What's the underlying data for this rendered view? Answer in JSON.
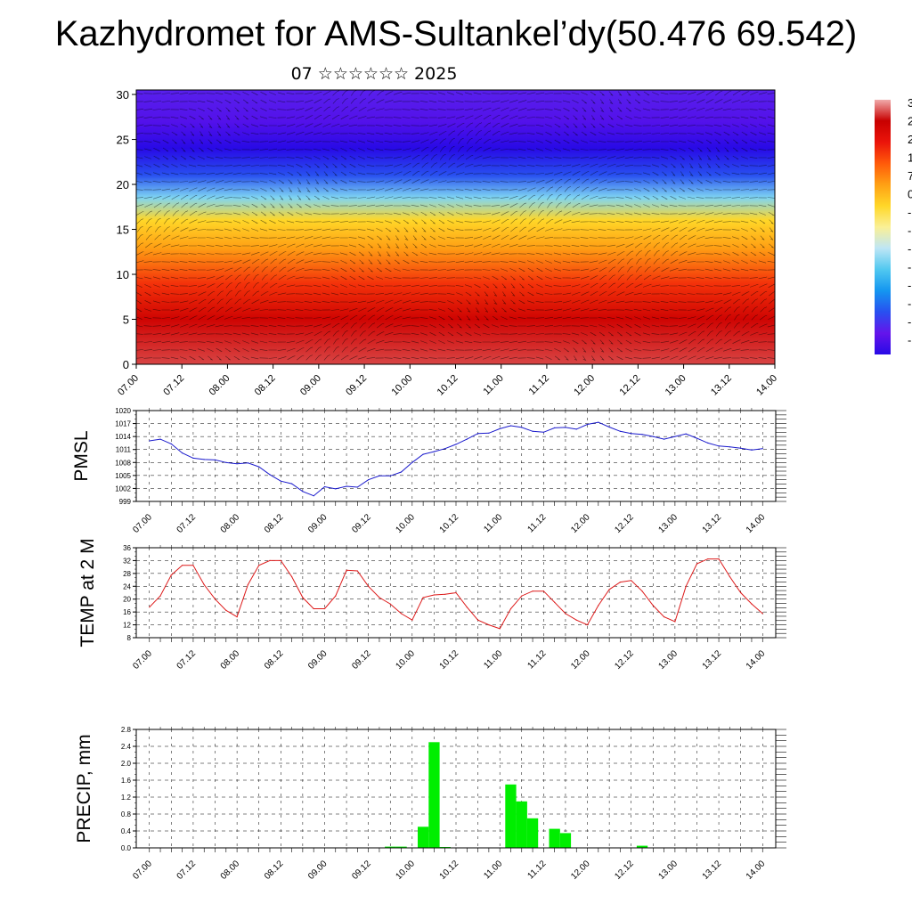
{
  "title": "Kazhydromet for AMS-Sultankel’dy(50.476 69.542)",
  "subtitle": "07 ☆☆☆☆☆☆ 2025",
  "time_labels": [
    "07.00",
    "07.12",
    "08.00",
    "08.12",
    "09.00",
    "09.12",
    "10.00",
    "10.12",
    "11.00",
    "11.12",
    "12.00",
    "12.12",
    "13.00",
    "13.12",
    "14.00"
  ],
  "colors": {
    "pressure_line": "#1a1acc",
    "temp_line": "#dd1a1a",
    "precip_bar": "#00ee00",
    "grid": "#000000"
  },
  "chart_data": [
    {
      "type": "heatmap",
      "id": "cross-section",
      "yticks": [
        "0",
        "5",
        "10",
        "15",
        "20",
        "25",
        "30"
      ],
      "ylim": [
        0,
        30.5
      ],
      "xlim": [
        0,
        7
      ],
      "colorbar_labels": [
        "3",
        "2",
        "2",
        "1",
        "7",
        "0",
        "-",
        "-",
        "-",
        "-",
        "-",
        "-",
        "-",
        "-"
      ],
      "temperature_by_level": [
        {
          "y": 0,
          "value": 30
        },
        {
          "y": 5,
          "value": 27
        },
        {
          "y": 9,
          "value": 20
        },
        {
          "y": 13,
          "value": 8
        },
        {
          "y": 16,
          "value": 1
        },
        {
          "y": 18.5,
          "value": -12
        },
        {
          "y": 21,
          "value": -28
        },
        {
          "y": 24,
          "value": -40
        },
        {
          "y": 27,
          "value": -35
        },
        {
          "y": 30.5,
          "value": -32
        }
      ],
      "wind_field": "wind barbs overlaid on the full grid"
    },
    {
      "type": "line",
      "id": "pmsl",
      "ylabel": "PMSL",
      "yticks": [
        "1020",
        "1017",
        "1014",
        "1011",
        "1008",
        "1005",
        "1002",
        "999"
      ],
      "ylim": [
        999,
        1020
      ],
      "xlim": [
        -0.15,
        7.15
      ],
      "x": [
        0,
        0.125,
        0.25,
        0.375,
        0.5,
        0.625,
        0.75,
        0.875,
        1,
        1.125,
        1.25,
        1.375,
        1.5,
        1.625,
        1.75,
        1.875,
        2,
        2.125,
        2.25,
        2.375,
        2.5,
        2.625,
        2.75,
        2.875,
        3,
        3.125,
        3.25,
        3.375,
        3.5,
        3.625,
        3.75,
        3.875,
        4,
        4.125,
        4.25,
        4.375,
        4.5,
        4.625,
        4.75,
        4.875,
        5,
        5.125,
        5.25,
        5.375,
        5.5,
        5.625,
        5.75,
        5.875,
        6,
        6.125,
        6.25,
        6.375,
        6.5,
        6.625,
        6.75,
        6.875,
        7
      ],
      "values": [
        1013,
        1013.4,
        1012.3,
        1010.2,
        1009,
        1008.7,
        1008.6,
        1008,
        1007.7,
        1007.9,
        1007,
        1005.2,
        1003.7,
        1003.1,
        1001.3,
        1000.3,
        1002.4,
        1001.9,
        1002.5,
        1002.3,
        1004,
        1004.9,
        1004.9,
        1005.8,
        1008,
        1009.9,
        1010.5,
        1011.2,
        1012.2,
        1013.4,
        1014.7,
        1014.8,
        1015.8,
        1016.5,
        1016.1,
        1015.2,
        1015,
        1016,
        1016.1,
        1015.7,
        1016.8,
        1017.3,
        1016.2,
        1015.2,
        1014.7,
        1014.5,
        1014,
        1013.4,
        1014,
        1014.6,
        1013.6,
        1012.5,
        1011.8,
        1011.6,
        1011.3,
        1010.9,
        1011.2
      ]
    },
    {
      "type": "line",
      "id": "temp2m",
      "ylabel": "TEMP at 2 M",
      "yticks": [
        "36",
        "32",
        "28",
        "24",
        "20",
        "16",
        "12",
        "8"
      ],
      "ylim": [
        8,
        36
      ],
      "xlim": [
        -0.15,
        7.15
      ],
      "x": [
        0,
        0.125,
        0.25,
        0.375,
        0.5,
        0.625,
        0.75,
        0.875,
        1,
        1.125,
        1.25,
        1.375,
        1.5,
        1.625,
        1.75,
        1.875,
        2,
        2.125,
        2.25,
        2.375,
        2.5,
        2.625,
        2.75,
        2.875,
        3,
        3.125,
        3.25,
        3.375,
        3.5,
        3.625,
        3.75,
        3.875,
        4,
        4.125,
        4.25,
        4.375,
        4.5,
        4.625,
        4.75,
        4.875,
        5,
        5.125,
        5.25,
        5.375,
        5.5,
        5.625,
        5.75,
        5.875,
        6,
        6.125,
        6.25,
        6.375,
        6.5,
        6.625,
        6.75,
        6.875,
        7
      ],
      "values": [
        17.5,
        21,
        27.5,
        30.5,
        30.5,
        24.5,
        20,
        16.5,
        14.5,
        24.5,
        30.5,
        32,
        32,
        27,
        20.5,
        17,
        17,
        21,
        29,
        28.8,
        24,
        20.5,
        18.5,
        15.5,
        13.5,
        20.5,
        21.3,
        21.5,
        22,
        17.5,
        13.5,
        12,
        10.8,
        17,
        21,
        22.5,
        22.5,
        19,
        15.5,
        13.5,
        12,
        18,
        23,
        25.3,
        25.8,
        22.5,
        18,
        14.5,
        13,
        24,
        31,
        32.5,
        32.5,
        27,
        22,
        18.5,
        15.5
      ]
    },
    {
      "type": "bar",
      "id": "precip",
      "ylabel": "PRECIP, mm",
      "yticks": [
        "2.8",
        "2.4",
        "2.0",
        "1.6",
        "1.2",
        "0.8",
        "0.4",
        "0.0"
      ],
      "ylim": [
        0,
        2.8
      ],
      "xlim": [
        -0.15,
        7.15
      ],
      "bar_width": 0.125,
      "x": [
        2.75,
        2.875,
        3.125,
        3.25,
        3.375,
        4.125,
        4.25,
        4.375,
        4.625,
        4.75,
        5.625,
        5.75
      ],
      "values": [
        0.03,
        0.03,
        0.5,
        2.5,
        0.02,
        1.5,
        1.1,
        0.7,
        0.45,
        0.35,
        0.05,
        0.01
      ]
    }
  ]
}
